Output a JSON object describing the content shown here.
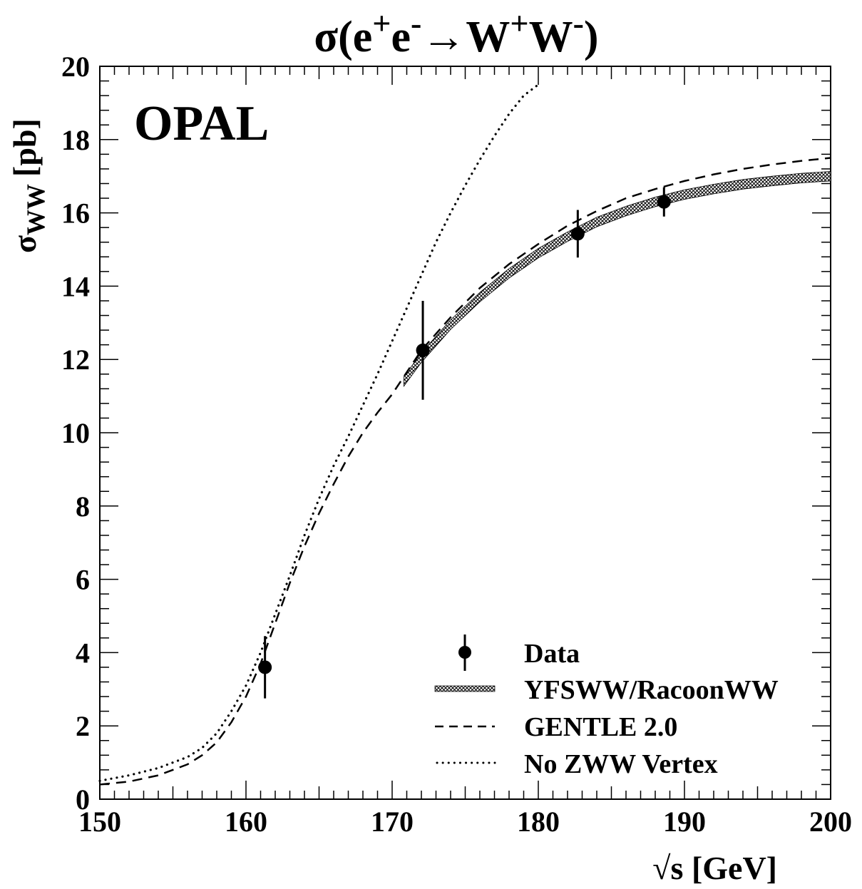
{
  "chart_data": {
    "type": "line",
    "title": {
      "prefix": "σ(e",
      "sup1": "+",
      "mid1": "e",
      "sup2": "-",
      "mid2": "→W",
      "sup3": "+",
      "mid3": "W",
      "sup4": "-",
      "suffix": ")"
    },
    "experiment_label": "OPAL",
    "xlabel": "√s [GeV]",
    "ylabel": {
      "main": "σ",
      "sub": "WW",
      "unit": "[pb]"
    },
    "xlim": [
      150,
      200
    ],
    "ylim": [
      0,
      20
    ],
    "x_ticks": [
      150,
      160,
      170,
      180,
      190,
      200
    ],
    "y_ticks": [
      0,
      2,
      4,
      6,
      8,
      10,
      12,
      14,
      16,
      18,
      20
    ],
    "grid": false,
    "legend_position": "bottom-right",
    "legend": [
      {
        "label": "Data",
        "style": "marker"
      },
      {
        "label": "YFSWW/RacoonWW",
        "style": "band"
      },
      {
        "label": "GENTLE 2.0",
        "style": "dashed"
      },
      {
        "label": "No ZWW Vertex",
        "style": "dotted"
      }
    ],
    "data_points": [
      {
        "x": 161.3,
        "y": 3.6,
        "err": 0.85
      },
      {
        "x": 172.1,
        "y": 12.25,
        "err": 1.35
      },
      {
        "x": 182.7,
        "y": 15.43,
        "err": 0.65
      },
      {
        "x": 188.6,
        "y": 16.3,
        "err": 0.4
      }
    ],
    "series": [
      {
        "name": "YFSWW/RacoonWW",
        "style": "band",
        "x": [
          170.8,
          172,
          174,
          176,
          178,
          180,
          182,
          184,
          186,
          188,
          190,
          192,
          194,
          196,
          198,
          200
        ],
        "y": [
          11.4,
          12.05,
          12.95,
          13.7,
          14.35,
          14.9,
          15.35,
          15.75,
          16.05,
          16.3,
          16.5,
          16.65,
          16.78,
          16.87,
          16.95,
          17.0
        ],
        "width": 0.13
      },
      {
        "name": "GENTLE 2.0",
        "style": "dashed",
        "x": [
          150,
          152,
          154,
          156,
          157,
          158,
          159,
          160,
          161,
          162,
          163,
          164,
          165,
          166,
          167,
          168,
          169,
          170,
          172,
          174,
          176,
          178,
          180,
          182,
          184,
          186,
          188,
          190,
          192,
          194,
          196,
          198,
          200
        ],
        "y": [
          0.4,
          0.48,
          0.65,
          0.95,
          1.2,
          1.55,
          2.1,
          2.8,
          3.7,
          4.8,
          5.9,
          6.9,
          7.8,
          8.6,
          9.35,
          10.0,
          10.55,
          11.05,
          12.25,
          13.15,
          13.95,
          14.6,
          15.15,
          15.65,
          16.05,
          16.4,
          16.65,
          16.87,
          17.05,
          17.2,
          17.32,
          17.42,
          17.5
        ]
      },
      {
        "name": "No ZWW Vertex",
        "style": "dotted",
        "x": [
          150,
          152,
          154,
          156,
          157,
          158,
          159,
          160,
          161,
          162,
          163,
          164,
          165,
          166,
          167,
          168,
          169,
          170,
          171,
          172,
          173,
          174,
          175,
          176,
          177,
          178,
          179,
          180
        ],
        "y": [
          0.5,
          0.65,
          0.85,
          1.15,
          1.4,
          1.8,
          2.4,
          3.1,
          4.0,
          5.05,
          6.1,
          7.2,
          8.2,
          9.1,
          9.9,
          10.75,
          11.6,
          12.5,
          13.4,
          14.3,
          15.2,
          16.0,
          16.75,
          17.45,
          18.1,
          18.7,
          19.2,
          19.5
        ]
      }
    ]
  }
}
